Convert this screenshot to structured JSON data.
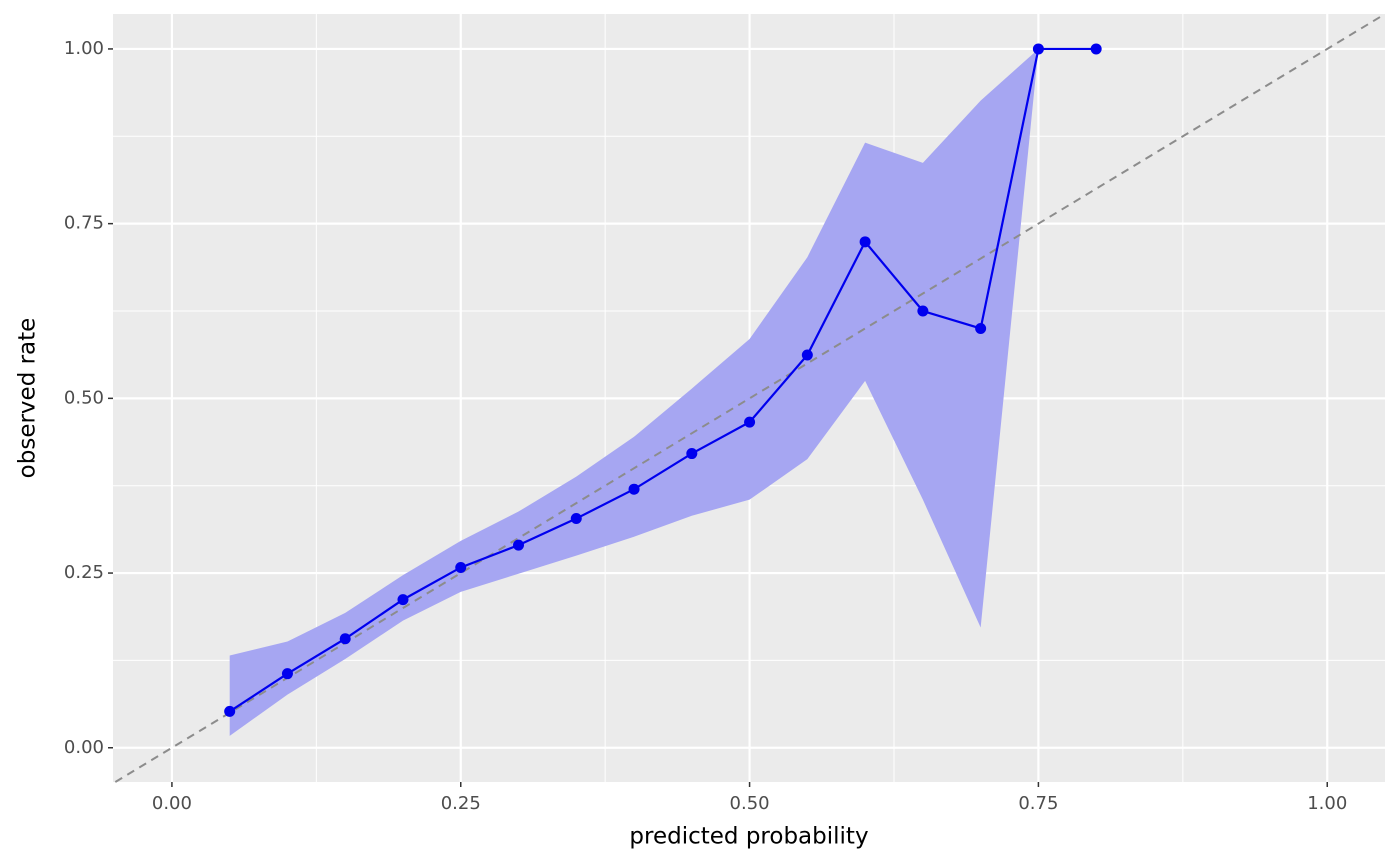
{
  "chart_data": {
    "type": "line",
    "x_label": "predicted probability",
    "y_label": "observed rate",
    "x": [
      0.05,
      0.1,
      0.15,
      0.2,
      0.25,
      0.3,
      0.35,
      0.4,
      0.45,
      0.5,
      0.55,
      0.6,
      0.65,
      0.7,
      0.75,
      0.8
    ],
    "series": [
      {
        "color": "#0000ee",
        "values": [
          0.052,
          0.106,
          0.156,
          0.212,
          0.258,
          0.29,
          0.328,
          0.37,
          0.421,
          0.466,
          0.562,
          0.724,
          0.625,
          0.6,
          1.0,
          1.0
        ]
      }
    ],
    "band": {
      "color": "#a6a6f2",
      "upper": [
        0.132,
        0.152,
        0.193,
        0.247,
        0.296,
        0.338,
        0.388,
        0.445,
        0.514,
        0.585,
        0.702,
        0.866,
        0.837,
        0.926,
        1.0,
        null
      ],
      "lower": [
        0.017,
        0.076,
        0.127,
        0.182,
        0.223,
        0.249,
        0.275,
        0.302,
        0.332,
        0.355,
        0.413,
        0.525,
        0.355,
        0.172,
        1.0,
        null
      ]
    },
    "diagonal": true,
    "xlim": [
      -0.051,
      1.05
    ],
    "ylim": [
      -0.049,
      1.05
    ],
    "xticks": [
      {
        "value": 0,
        "label": "0.00"
      },
      {
        "value": 0.25,
        "label": "0.25"
      },
      {
        "value": 0.5,
        "label": "0.50"
      },
      {
        "value": 0.75,
        "label": "0.75"
      },
      {
        "value": 1,
        "label": "1.00"
      }
    ],
    "yticks": [
      {
        "value": 0,
        "label": "0.00"
      },
      {
        "value": 0.25,
        "label": "0.25"
      },
      {
        "value": 0.5,
        "label": "0.50"
      },
      {
        "value": 0.75,
        "label": "0.75"
      },
      {
        "value": 1,
        "label": "1.00"
      }
    ],
    "x_minor": [
      0.125,
      0.375,
      0.625,
      0.875
    ],
    "y_minor": [
      0.125,
      0.375,
      0.625,
      0.875
    ],
    "grid": true
  }
}
